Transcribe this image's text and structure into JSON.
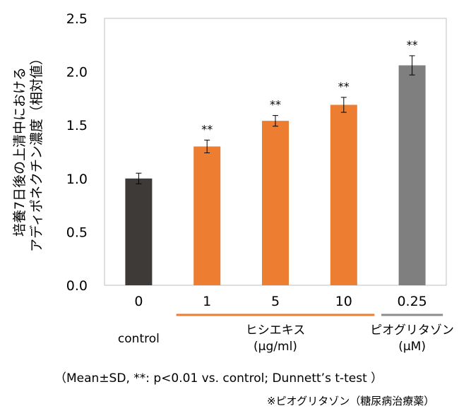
{
  "chart_data": {
    "type": "bar",
    "ylabel_lines": [
      "培養7日後の上清中における",
      "アディポネクチン濃度（相対値）"
    ],
    "ylim": [
      0,
      2.5
    ],
    "yticks": [
      "0.0",
      "0.5",
      "1.0",
      "1.5",
      "2.0",
      "2.5"
    ],
    "grid": false,
    "categories": [
      "0",
      "1",
      "5",
      "10",
      "0.25"
    ],
    "values": [
      1.0,
      1.3,
      1.54,
      1.69,
      2.06
    ],
    "errors": [
      0.05,
      0.06,
      0.05,
      0.07,
      0.09
    ],
    "significance": [
      "",
      "**",
      "**",
      "**",
      "**"
    ],
    "colors": [
      "#3d3a38",
      "#ed7d31",
      "#ed7d31",
      "#ed7d31",
      "#7f7f7f"
    ],
    "groups": [
      {
        "lines": [
          "control"
        ],
        "indices": [
          0
        ],
        "bracket": false,
        "color": ""
      },
      {
        "lines": [
          "ヒシエキス",
          "(μg/ml)"
        ],
        "indices": [
          1,
          2,
          3
        ],
        "bracket": true,
        "color": "#ed7d31"
      },
      {
        "lines": [
          "ピオグリタゾン",
          "(μM)"
        ],
        "indices": [
          4
        ],
        "bracket": true,
        "color": "#8c8c8c"
      }
    ]
  },
  "footnote": "（Mean±SD, **: p<0.01 vs. control; Dunnett’s t-test ）",
  "subnote": "※ピオグリタゾン（糖尿病治療薬）"
}
